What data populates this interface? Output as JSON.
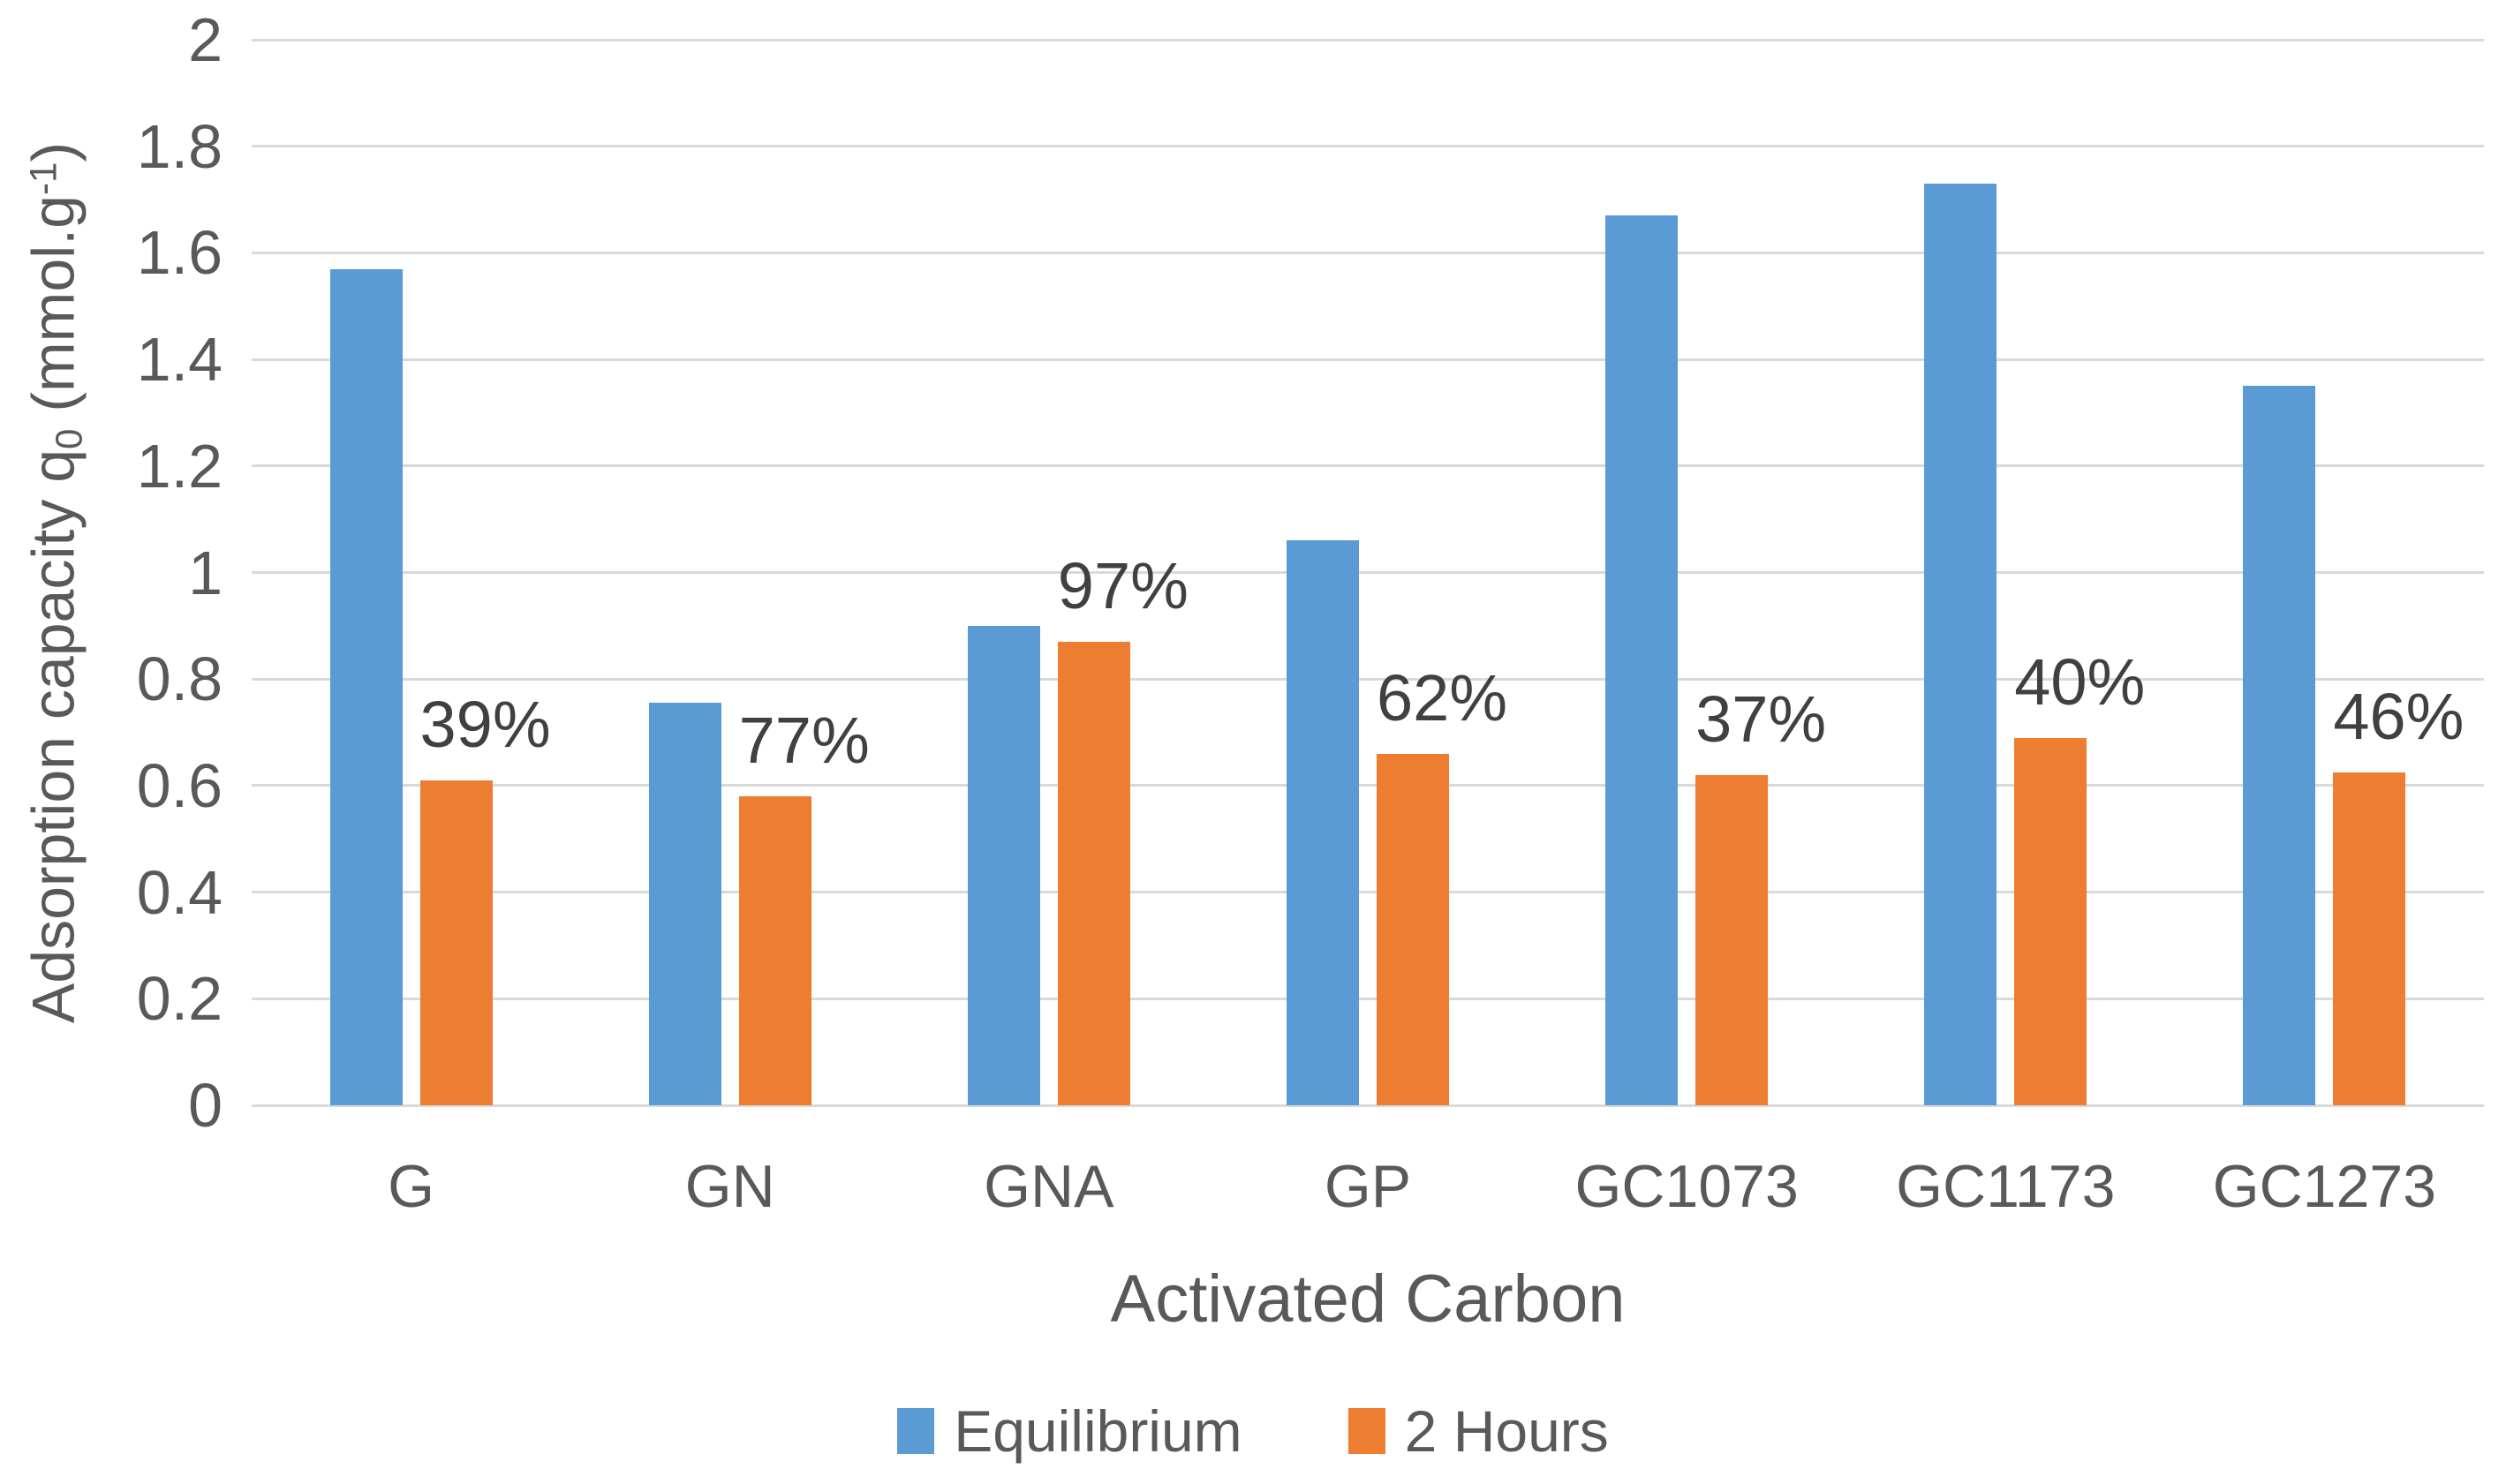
{
  "chart_data": {
    "type": "bar",
    "title": "",
    "xlabel": "Activated Carbon",
    "ylabel": "Adsorption capacity q0 (mmol.g-1)",
    "ylabel_parts": {
      "main": "Adsorption capacity q",
      "sub": "0",
      "unit_pre": " (mmol.g",
      "sup": "-1",
      "unit_post": ")"
    },
    "categories": [
      "G",
      "GN",
      "GNA",
      "GP",
      "GC1073",
      "GC1173",
      "GC1273"
    ],
    "series": [
      {
        "name": "Equilibrium",
        "color": "#5B9BD5",
        "values": [
          1.57,
          0.755,
          0.9,
          1.06,
          1.67,
          1.73,
          1.35
        ]
      },
      {
        "name": "2 Hours",
        "color": "#ED7D31",
        "values": [
          0.61,
          0.58,
          0.87,
          0.66,
          0.62,
          0.69,
          0.625
        ]
      }
    ],
    "bar_labels": [
      "39%",
      "77%",
      "97%",
      "62%",
      "37%",
      "40%",
      "46%"
    ],
    "ylim": [
      0,
      2
    ],
    "ytick_step": 0.2,
    "yticks": [
      "0",
      "0.2",
      "0.4",
      "0.6",
      "0.8",
      "1",
      "1.2",
      "1.4",
      "1.6",
      "1.8",
      "2"
    ],
    "grid": true,
    "legend_position": "bottom",
    "colors": {
      "gridline": "#D9D9D9",
      "axis_text": "#595959",
      "data_label_text": "#404040",
      "background": "#FFFFFF"
    }
  }
}
